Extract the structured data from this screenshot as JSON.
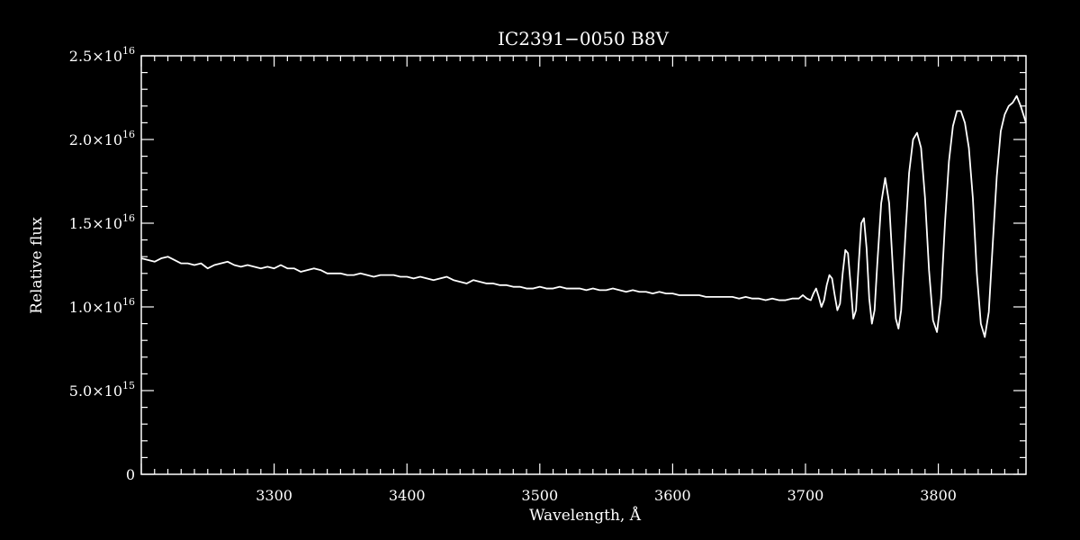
{
  "chart_data": {
    "type": "line",
    "title": "IC2391−0050   B8V",
    "xlabel": "Wavelength, Å",
    "ylabel": "Relative flux",
    "xlim": [
      3200,
      3866
    ],
    "ylim": [
      0,
      2.5e+16
    ],
    "x_ticks": [
      3300,
      3400,
      3500,
      3600,
      3700,
      3800
    ],
    "x_tick_labels": [
      "3300",
      "3400",
      "3500",
      "3600",
      "3700",
      "3800"
    ],
    "y_ticks": [
      {
        "value": 0,
        "mantissa": "0",
        "exponent": ""
      },
      {
        "value": 5000000000000000.0,
        "mantissa": "5.0×10",
        "exponent": "15"
      },
      {
        "value": 1e+16,
        "mantissa": "1.0×10",
        "exponent": "16"
      },
      {
        "value": 1.5e+16,
        "mantissa": "1.5×10",
        "exponent": "16"
      },
      {
        "value": 2e+16,
        "mantissa": "2.0×10",
        "exponent": "16"
      },
      {
        "value": 2.5e+16,
        "mantissa": "2.5×10",
        "exponent": "16"
      }
    ],
    "grid": false,
    "series": [
      {
        "color": "#ffffff",
        "points": [
          [
            3200,
            1.29e+16
          ],
          [
            3205,
            1.28e+16
          ],
          [
            3210,
            1.27e+16
          ],
          [
            3215,
            1.29e+16
          ],
          [
            3220,
            1.3e+16
          ],
          [
            3225,
            1.28e+16
          ],
          [
            3230,
            1.26e+16
          ],
          [
            3235,
            1.26e+16
          ],
          [
            3240,
            1.25e+16
          ],
          [
            3245,
            1.26e+16
          ],
          [
            3250,
            1.23e+16
          ],
          [
            3255,
            1.25e+16
          ],
          [
            3260,
            1.26e+16
          ],
          [
            3265,
            1.27e+16
          ],
          [
            3270,
            1.25e+16
          ],
          [
            3275,
            1.24e+16
          ],
          [
            3280,
            1.25e+16
          ],
          [
            3285,
            1.24e+16
          ],
          [
            3290,
            1.23e+16
          ],
          [
            3295,
            1.24e+16
          ],
          [
            3300,
            1.23e+16
          ],
          [
            3305,
            1.25e+16
          ],
          [
            3310,
            1.23e+16
          ],
          [
            3315,
            1.23e+16
          ],
          [
            3320,
            1.21e+16
          ],
          [
            3325,
            1.22e+16
          ],
          [
            3330,
            1.23e+16
          ],
          [
            3335,
            1.22e+16
          ],
          [
            3340,
            1.2e+16
          ],
          [
            3345,
            1.2e+16
          ],
          [
            3350,
            1.2e+16
          ],
          [
            3355,
            1.19e+16
          ],
          [
            3360,
            1.19e+16
          ],
          [
            3365,
            1.2e+16
          ],
          [
            3370,
            1.19e+16
          ],
          [
            3375,
            1.18e+16
          ],
          [
            3380,
            1.19e+16
          ],
          [
            3385,
            1.19e+16
          ],
          [
            3390,
            1.19e+16
          ],
          [
            3395,
            1.18e+16
          ],
          [
            3400,
            1.18e+16
          ],
          [
            3405,
            1.17e+16
          ],
          [
            3410,
            1.18e+16
          ],
          [
            3415,
            1.17e+16
          ],
          [
            3420,
            1.16e+16
          ],
          [
            3425,
            1.17e+16
          ],
          [
            3430,
            1.18e+16
          ],
          [
            3435,
            1.16e+16
          ],
          [
            3440,
            1.15e+16
          ],
          [
            3445,
            1.14e+16
          ],
          [
            3450,
            1.16e+16
          ],
          [
            3455,
            1.15e+16
          ],
          [
            3460,
            1.14e+16
          ],
          [
            3465,
            1.14e+16
          ],
          [
            3470,
            1.13e+16
          ],
          [
            3475,
            1.13e+16
          ],
          [
            3480,
            1.12e+16
          ],
          [
            3485,
            1.12e+16
          ],
          [
            3490,
            1.11e+16
          ],
          [
            3495,
            1.11e+16
          ],
          [
            3500,
            1.12e+16
          ],
          [
            3505,
            1.11e+16
          ],
          [
            3510,
            1.11e+16
          ],
          [
            3515,
            1.12e+16
          ],
          [
            3520,
            1.11e+16
          ],
          [
            3525,
            1.11e+16
          ],
          [
            3530,
            1.11e+16
          ],
          [
            3535,
            1.1e+16
          ],
          [
            3540,
            1.11e+16
          ],
          [
            3545,
            1.1e+16
          ],
          [
            3550,
            1.1e+16
          ],
          [
            3555,
            1.11e+16
          ],
          [
            3560,
            1.1e+16
          ],
          [
            3565,
            1.09e+16
          ],
          [
            3570,
            1.1e+16
          ],
          [
            3575,
            1.09e+16
          ],
          [
            3580,
            1.09e+16
          ],
          [
            3585,
            1.08e+16
          ],
          [
            3590,
            1.09e+16
          ],
          [
            3595,
            1.08e+16
          ],
          [
            3600,
            1.08e+16
          ],
          [
            3605,
            1.07e+16
          ],
          [
            3610,
            1.07e+16
          ],
          [
            3615,
            1.07e+16
          ],
          [
            3620,
            1.07e+16
          ],
          [
            3625,
            1.06e+16
          ],
          [
            3630,
            1.06e+16
          ],
          [
            3635,
            1.06e+16
          ],
          [
            3640,
            1.06e+16
          ],
          [
            3645,
            1.06e+16
          ],
          [
            3650,
            1.05e+16
          ],
          [
            3655,
            1.06e+16
          ],
          [
            3660,
            1.05e+16
          ],
          [
            3665,
            1.05e+16
          ],
          [
            3670,
            1.04e+16
          ],
          [
            3675,
            1.05e+16
          ],
          [
            3680,
            1.04e+16
          ],
          [
            3685,
            1.04e+16
          ],
          [
            3690,
            1.05e+16
          ],
          [
            3695,
            1.05e+16
          ],
          [
            3698,
            1.07e+16
          ],
          [
            3701,
            1.05e+16
          ],
          [
            3704,
            1.04e+16
          ],
          [
            3706,
            1.08e+16
          ],
          [
            3708,
            1.11e+16
          ],
          [
            3710,
            1.06e+16
          ],
          [
            3712,
            1e+16
          ],
          [
            3714,
            1.04e+16
          ],
          [
            3716,
            1.13e+16
          ],
          [
            3718,
            1.19e+16
          ],
          [
            3720,
            1.17e+16
          ],
          [
            3722,
            1.07e+16
          ],
          [
            3724,
            9800000000000000.0
          ],
          [
            3726,
            1.02e+16
          ],
          [
            3728,
            1.2e+16
          ],
          [
            3730,
            1.34e+16
          ],
          [
            3732,
            1.32e+16
          ],
          [
            3734,
            1.13e+16
          ],
          [
            3736,
            9300000000000000.0
          ],
          [
            3738,
            9800000000000000.0
          ],
          [
            3740,
            1.25e+16
          ],
          [
            3742,
            1.5e+16
          ],
          [
            3744,
            1.53e+16
          ],
          [
            3746,
            1.35e+16
          ],
          [
            3748,
            1.05e+16
          ],
          [
            3750,
            9000000000000000.0
          ],
          [
            3752,
            9800000000000000.0
          ],
          [
            3754,
            1.25e+16
          ],
          [
            3757,
            1.62e+16
          ],
          [
            3760,
            1.77e+16
          ],
          [
            3763,
            1.62e+16
          ],
          [
            3766,
            1.2e+16
          ],
          [
            3768,
            9300000000000000.0
          ],
          [
            3770,
            8700000000000000.0
          ],
          [
            3772,
            9800000000000000.0
          ],
          [
            3775,
            1.4e+16
          ],
          [
            3778,
            1.8e+16
          ],
          [
            3781,
            2e+16
          ],
          [
            3784,
            2.04e+16
          ],
          [
            3787,
            1.95e+16
          ],
          [
            3790,
            1.65e+16
          ],
          [
            3793,
            1.22e+16
          ],
          [
            3796,
            9200000000000000.0
          ],
          [
            3799,
            8500000000000000.0
          ],
          [
            3802,
            1.05e+16
          ],
          [
            3805,
            1.5e+16
          ],
          [
            3808,
            1.87e+16
          ],
          [
            3811,
            2.08e+16
          ],
          [
            3814,
            2.17e+16
          ],
          [
            3817,
            2.17e+16
          ],
          [
            3820,
            2.1e+16
          ],
          [
            3823,
            1.95e+16
          ],
          [
            3826,
            1.65e+16
          ],
          [
            3829,
            1.2e+16
          ],
          [
            3832,
            9000000000000000.0
          ],
          [
            3835,
            8200000000000000.0
          ],
          [
            3838,
            9700000000000000.0
          ],
          [
            3841,
            1.38e+16
          ],
          [
            3844,
            1.78e+16
          ],
          [
            3847,
            2.05e+16
          ],
          [
            3850,
            2.15e+16
          ],
          [
            3853,
            2.2e+16
          ],
          [
            3856,
            2.22e+16
          ],
          [
            3859,
            2.26e+16
          ],
          [
            3862,
            2.2e+16
          ],
          [
            3866,
            2.1e+16
          ]
        ]
      }
    ]
  }
}
